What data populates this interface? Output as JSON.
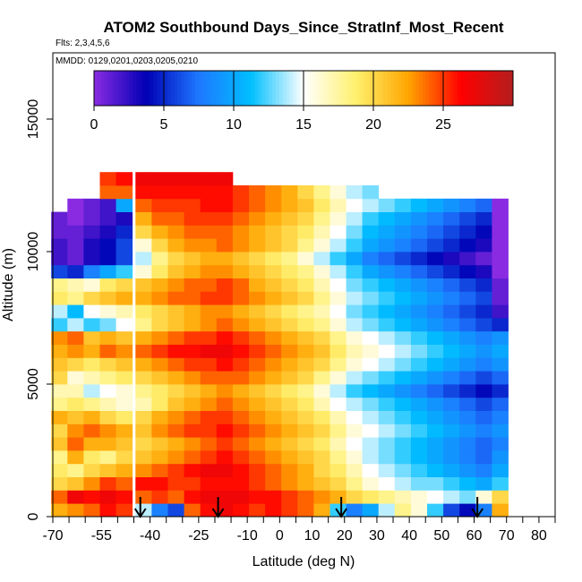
{
  "chart_data": {
    "type": "heatmap",
    "title": "ATOM2 Southbound Days_Since_StratInf_Most_Recent",
    "flights_label": "Flts: 2,3,4,5,6",
    "dates_label": "MMDD: 0129,0201,0203,0205,0210",
    "xlabel": "Latitude (deg N)",
    "ylabel": "Altitude (m)",
    "xlim": [
      -70,
      85
    ],
    "ylim": [
      0,
      17500
    ],
    "x_ticks": [
      -70,
      -55,
      -40,
      -25,
      -10,
      0,
      10,
      20,
      30,
      40,
      50,
      60,
      70,
      80
    ],
    "x_minor_ticks": [
      -65,
      -60,
      -50,
      -45,
      -35,
      -30,
      -20,
      -15,
      -5,
      5,
      15,
      25,
      35,
      45,
      55,
      65,
      75,
      85
    ],
    "y_ticks": [
      0,
      5000,
      10000,
      15000
    ],
    "colorbar": {
      "range": [
        0,
        30
      ],
      "ticks": [
        0,
        5,
        10,
        15,
        20,
        25
      ],
      "colors": [
        "#8a2be2",
        "#0000b4",
        "#1e78ff",
        "#00bfff",
        "#ffffff",
        "#fff06e",
        "#ffa500",
        "#ff0000",
        "#b41e1e"
      ]
    },
    "sample_columns": [
      {
        "lat": -68,
        "values": [
          22,
          24,
          20,
          19,
          18,
          21,
          20,
          22,
          18,
          17,
          20,
          21,
          22,
          23,
          12,
          14,
          19,
          18,
          6,
          2,
          2,
          1,
          1
        ]
      },
      {
        "lat": -63,
        "values": [
          23,
          27,
          21,
          18,
          22,
          24,
          23,
          21,
          19,
          17,
          16,
          20,
          23,
          24,
          14,
          11,
          18,
          17,
          5,
          1,
          1,
          1,
          0,
          0
        ]
      },
      {
        "lat": -58,
        "values": [
          24,
          26,
          23,
          20,
          19,
          22,
          24,
          22,
          18,
          14,
          17,
          19,
          22,
          21,
          12,
          15,
          20,
          16,
          8,
          3,
          3,
          2,
          1,
          1
        ]
      },
      {
        "lat": -53,
        "values": [
          26,
          27,
          25,
          21,
          18,
          22,
          23,
          20,
          17,
          15,
          18,
          20,
          24,
          22,
          13,
          16,
          21,
          19,
          10,
          4,
          4,
          3,
          2,
          2,
          24,
          25
        ]
      },
      {
        "lat": -48,
        "values": [
          25,
          26,
          24,
          22,
          20,
          21,
          22,
          19,
          16,
          16,
          19,
          21,
          23,
          21,
          15,
          17,
          22,
          20,
          12,
          6,
          6,
          5,
          3,
          10,
          24,
          26
        ]
      },
      {
        "lat": -42,
        "values": [
          14,
          24,
          26,
          23,
          21,
          20,
          21,
          20,
          17,
          18,
          20,
          22,
          24,
          22,
          18,
          19,
          22,
          21,
          16,
          14,
          16,
          20,
          22,
          24,
          26,
          27
        ]
      },
      {
        "lat": -37,
        "values": [
          8,
          25,
          26,
          24,
          22,
          21,
          23,
          22,
          19,
          19,
          21,
          23,
          25,
          23,
          20,
          20,
          23,
          22,
          19,
          18,
          20,
          22,
          24,
          25,
          26,
          27
        ]
      },
      {
        "lat": -32,
        "values": [
          6,
          24,
          25,
          25,
          23,
          22,
          24,
          23,
          21,
          20,
          22,
          24,
          26,
          24,
          21,
          21,
          24,
          23,
          21,
          20,
          22,
          23,
          24,
          25,
          26,
          27
        ]
      },
      {
        "lat": -27,
        "values": [
          24,
          26,
          25,
          26,
          24,
          23,
          25,
          24,
          22,
          21,
          23,
          25,
          26,
          25,
          22,
          22,
          24,
          24,
          22,
          21,
          23,
          24,
          25,
          25,
          26,
          27
        ]
      },
      {
        "lat": -22,
        "values": [
          26,
          27,
          26,
          27,
          25,
          24,
          25,
          25,
          23,
          22,
          24,
          25,
          27,
          25,
          23,
          23,
          25,
          24,
          23,
          22,
          23,
          24,
          25,
          26,
          26,
          27
        ]
      },
      {
        "lat": -17,
        "values": [
          27,
          27,
          26,
          27,
          26,
          25,
          26,
          25,
          24,
          23,
          24,
          26,
          27,
          26,
          24,
          23,
          25,
          25,
          23,
          22,
          24,
          24,
          25,
          26,
          26,
          27
        ]
      },
      {
        "lat": -12,
        "values": [
          26,
          27,
          26,
          26,
          25,
          24,
          25,
          24,
          23,
          22,
          24,
          25,
          26,
          25,
          23,
          22,
          24,
          24,
          22,
          21,
          23,
          23,
          24,
          25,
          25
        ]
      },
      {
        "lat": -7,
        "values": [
          25,
          26,
          25,
          25,
          24,
          23,
          24,
          23,
          22,
          21,
          23,
          24,
          25,
          24,
          22,
          21,
          23,
          22,
          21,
          20,
          22,
          22,
          23,
          24,
          24
        ]
      },
      {
        "lat": -2,
        "values": [
          26,
          26,
          24,
          24,
          23,
          22,
          23,
          22,
          21,
          20,
          22,
          23,
          24,
          23,
          21,
          20,
          22,
          21,
          20,
          19,
          21,
          21,
          22,
          23,
          23
        ]
      },
      {
        "lat": 3,
        "values": [
          25,
          25,
          23,
          23,
          22,
          21,
          22,
          21,
          20,
          19,
          21,
          22,
          23,
          22,
          20,
          19,
          21,
          20,
          19,
          18,
          20,
          20,
          21,
          22,
          22
        ]
      },
      {
        "lat": 8,
        "values": [
          24,
          24,
          22,
          22,
          21,
          20,
          21,
          20,
          19,
          18,
          20,
          21,
          22,
          21,
          19,
          18,
          20,
          19,
          18,
          16,
          18,
          19,
          20,
          21,
          20
        ]
      },
      {
        "lat": 13,
        "values": [
          22,
          23,
          21,
          20,
          20,
          19,
          20,
          19,
          17,
          16,
          18,
          20,
          21,
          20,
          18,
          17,
          18,
          17,
          16,
          14,
          16,
          17,
          18,
          19,
          18
        ]
      },
      {
        "lat": 18,
        "values": [
          12,
          22,
          20,
          19,
          18,
          17,
          18,
          17,
          15,
          14,
          16,
          18,
          19,
          18,
          16,
          15,
          16,
          15,
          14,
          12,
          14,
          15,
          16,
          17,
          16
        ]
      },
      {
        "lat": 23,
        "values": [
          8,
          20,
          18,
          17,
          16,
          15,
          16,
          15,
          14,
          12,
          14,
          16,
          17,
          16,
          14,
          13,
          14,
          13,
          12,
          10,
          12,
          13,
          14,
          15,
          14
        ]
      },
      {
        "lat": 28,
        "values": [
          10,
          19,
          16,
          15,
          14,
          14,
          15,
          14,
          13,
          11,
          13,
          15,
          16,
          15,
          13,
          12,
          13,
          12,
          10,
          8,
          10,
          11,
          12,
          14,
          13
        ]
      },
      {
        "lat": 33,
        "values": [
          14,
          18,
          15,
          14,
          13,
          13,
          14,
          13,
          12,
          10,
          12,
          14,
          15,
          14,
          12,
          11,
          12,
          11,
          9,
          7,
          9,
          10,
          11,
          13
        ]
      },
      {
        "lat": 38,
        "values": [
          18,
          17,
          14,
          13,
          12,
          12,
          13,
          12,
          11,
          9,
          11,
          13,
          14,
          13,
          11,
          10,
          11,
          10,
          8,
          6,
          8,
          9,
          10,
          12
        ]
      },
      {
        "lat": 43,
        "values": [
          16,
          16,
          13,
          12,
          11,
          11,
          12,
          11,
          10,
          8,
          10,
          12,
          13,
          12,
          10,
          9,
          10,
          9,
          7,
          5,
          7,
          8,
          9,
          11
        ]
      },
      {
        "lat": 48,
        "values": [
          12,
          15,
          13,
          11,
          10,
          10,
          11,
          10,
          9,
          7,
          9,
          11,
          12,
          11,
          9,
          8,
          9,
          8,
          6,
          4,
          6,
          7,
          8,
          10
        ]
      },
      {
        "lat": 53,
        "values": [
          6,
          14,
          12,
          10,
          9,
          9,
          10,
          9,
          8,
          6,
          8,
          10,
          11,
          10,
          8,
          7,
          8,
          7,
          5,
          3,
          5,
          6,
          7,
          9
        ]
      },
      {
        "lat": 58,
        "values": [
          4,
          13,
          11,
          9,
          8,
          8,
          9,
          8,
          7,
          5,
          7,
          9,
          10,
          9,
          7,
          6,
          7,
          6,
          4,
          2,
          4,
          5,
          6,
          8
        ]
      },
      {
        "lat": 63,
        "values": [
          8,
          16,
          10,
          8,
          7,
          7,
          8,
          7,
          6,
          4,
          6,
          8,
          9,
          8,
          6,
          5,
          6,
          5,
          3,
          1,
          3,
          4,
          5,
          7
        ]
      },
      {
        "lat": 68,
        "values": [
          22,
          20,
          12,
          10,
          9,
          8,
          9,
          8,
          7,
          5,
          7,
          9,
          10,
          9,
          5,
          2,
          1,
          1,
          0,
          0,
          0,
          0,
          0,
          0
        ]
      }
    ],
    "arrows_lat": [
      -43,
      -19,
      19,
      61
    ]
  }
}
